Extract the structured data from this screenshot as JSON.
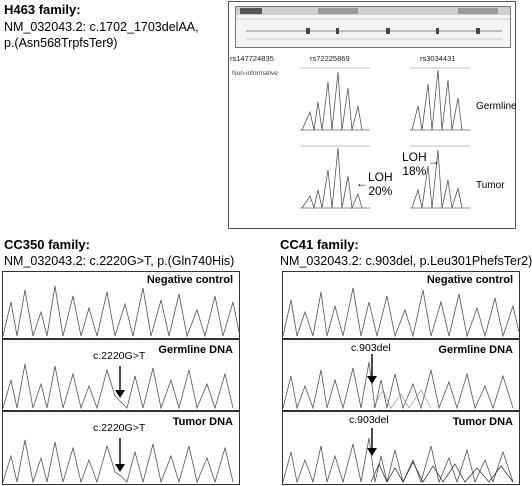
{
  "h463": {
    "title": "H463 family:",
    "line1": "NM_032043.2: c.1702_1703delAA,",
    "line2": "p.(Asn568TrpfsTer9)",
    "snps": [
      "rs147724835",
      "rs72225869",
      "rs3034431"
    ],
    "non_informative": "Non-informative",
    "germline": "Germline",
    "tumor": "Tumor",
    "loh1_a": "LOH",
    "loh1_b": "20%",
    "loh2_a": "LOH",
    "loh2_b": "18%",
    "arrow_left": "←",
    "arrow_right": "→"
  },
  "cc350": {
    "title": "CC350 family:",
    "desc": "NM_032043.2: c.2220G>T, p.(Gln740His)",
    "lane1": "Negative control",
    "lane2": "Germline DNA",
    "lane3": "Tumor DNA",
    "mut": "c.2220G>T"
  },
  "cc41": {
    "title": "CC41 family:",
    "desc": "NM_032043.2: c.903del, p.Leu301PhefsTer2)",
    "lane1": "Negative control",
    "lane2": "Germline DNA",
    "lane3": "Tumor DNA",
    "mut": "c.903del"
  }
}
